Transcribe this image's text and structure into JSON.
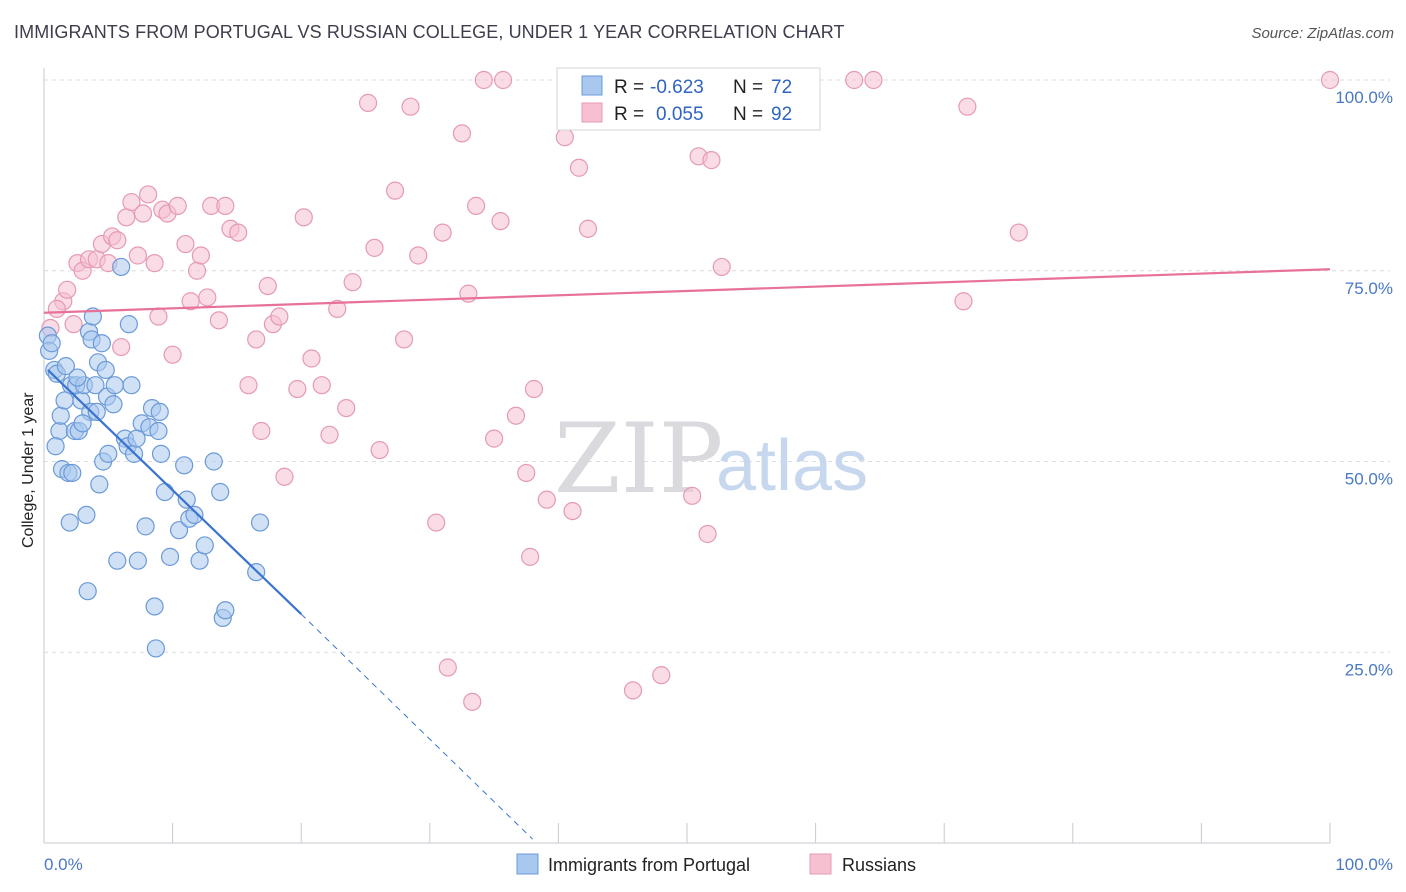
{
  "title": "IMMIGRANTS FROM PORTUGAL VS RUSSIAN COLLEGE, UNDER 1 YEAR CORRELATION CHART",
  "source": "Source: ZipAtlas.com",
  "watermark": {
    "zip": "ZIP",
    "atlas": "atlas"
  },
  "colors": {
    "blue_fill": "#a9c8ef",
    "blue_stroke": "#6b9ad8",
    "blue_line": "#3a74d0",
    "pink_fill": "#f6c0d1",
    "pink_stroke": "#e59ab4",
    "pink_line": "#e8719a",
    "grid": "#dcdce4",
    "axis_text": "#4a78c4"
  },
  "legend": {
    "rows": [
      {
        "r_label": "R =",
        "r_value": "-0.623",
        "n_label": "N =",
        "n_value": "72"
      },
      {
        "r_label": "R =",
        "r_value": "0.055",
        "n_label": "N =",
        "n_value": "92"
      }
    ]
  },
  "bottom_legend": [
    "Immigrants from Portugal",
    "Russians"
  ],
  "chart_data": {
    "type": "scatter",
    "title": "IMMIGRANTS FROM PORTUGAL VS RUSSIAN COLLEGE, UNDER 1 YEAR CORRELATION CHART",
    "xlabel": "",
    "ylabel": "College, Under 1 year",
    "xlim": [
      0,
      100
    ],
    "ylim": [
      0,
      100
    ],
    "x_tick_labels": [
      "0.0%",
      "100.0%"
    ],
    "y_tick_labels": [
      "100.0%",
      "75.0%",
      "50.0%",
      "25.0%"
    ],
    "y_ticks": [
      100,
      75,
      50,
      25
    ],
    "grid": true,
    "series": [
      {
        "name": "Immigrants from Portugal",
        "trend": {
          "x0": 0.3,
          "y0": 62.0,
          "x1": 20.0,
          "y1": 30.0,
          "dash_x1": 38.0,
          "dash_y1": 0.5
        },
        "points": [
          [
            0.3,
            66.5
          ],
          [
            0.4,
            64.5
          ],
          [
            0.6,
            65.5
          ],
          [
            0.8,
            62
          ],
          [
            1.0,
            61.5
          ],
          [
            1.2,
            54
          ],
          [
            1.3,
            56
          ],
          [
            1.4,
            49
          ],
          [
            1.7,
            62.5
          ],
          [
            1.9,
            48.5
          ],
          [
            2.0,
            42
          ],
          [
            2.1,
            60
          ],
          [
            2.2,
            48.5
          ],
          [
            2.4,
            54
          ],
          [
            2.5,
            60
          ],
          [
            2.7,
            54
          ],
          [
            2.9,
            58
          ],
          [
            3.1,
            60
          ],
          [
            3.3,
            43
          ],
          [
            3.4,
            33
          ],
          [
            3.5,
            67
          ],
          [
            3.6,
            56.5
          ],
          [
            3.7,
            66
          ],
          [
            3.8,
            69
          ],
          [
            4.0,
            60
          ],
          [
            4.1,
            56.5
          ],
          [
            4.2,
            63
          ],
          [
            4.5,
            65.5
          ],
          [
            4.6,
            50
          ],
          [
            4.8,
            62
          ],
          [
            4.9,
            58.5
          ],
          [
            5.0,
            51
          ],
          [
            5.4,
            57.5
          ],
          [
            5.7,
            37
          ],
          [
            6.0,
            75.5
          ],
          [
            6.3,
            53
          ],
          [
            6.5,
            52
          ],
          [
            6.6,
            68
          ],
          [
            6.8,
            60
          ],
          [
            7.0,
            51
          ],
          [
            7.3,
            37
          ],
          [
            7.6,
            55
          ],
          [
            7.9,
            41.5
          ],
          [
            8.2,
            54.5
          ],
          [
            8.4,
            57
          ],
          [
            8.6,
            31
          ],
          [
            8.7,
            25.5
          ],
          [
            8.9,
            54
          ],
          [
            9.0,
            56.5
          ],
          [
            9.1,
            51
          ],
          [
            9.4,
            46
          ],
          [
            9.8,
            37.5
          ],
          [
            10.5,
            41
          ],
          [
            10.9,
            49.5
          ],
          [
            11.1,
            45
          ],
          [
            11.3,
            42.5
          ],
          [
            11.7,
            43
          ],
          [
            12.1,
            37
          ],
          [
            12.5,
            39
          ],
          [
            13.2,
            50
          ],
          [
            13.7,
            46
          ],
          [
            13.9,
            29.5
          ],
          [
            14.1,
            30.5
          ],
          [
            16.5,
            35.5
          ],
          [
            16.8,
            42
          ],
          [
            5.5,
            60
          ],
          [
            7.2,
            53
          ],
          [
            3.0,
            55
          ],
          [
            2.6,
            61
          ],
          [
            1.6,
            58
          ],
          [
            0.9,
            52
          ],
          [
            4.3,
            47
          ]
        ]
      },
      {
        "name": "Russians",
        "trend": {
          "x0": 0,
          "y0": 69.5,
          "x1": 100,
          "y1": 75.2
        },
        "points": [
          [
            0.5,
            67.5
          ],
          [
            1.5,
            71
          ],
          [
            1.8,
            72.5
          ],
          [
            2.3,
            68
          ],
          [
            2.6,
            76
          ],
          [
            3.0,
            75
          ],
          [
            3.5,
            76.5
          ],
          [
            4.1,
            76.5
          ],
          [
            4.5,
            78.5
          ],
          [
            5.0,
            76
          ],
          [
            5.3,
            79.5
          ],
          [
            5.7,
            79
          ],
          [
            6.4,
            82
          ],
          [
            6.8,
            84
          ],
          [
            7.3,
            77
          ],
          [
            7.7,
            82.5
          ],
          [
            8.1,
            85
          ],
          [
            8.6,
            76
          ],
          [
            9.2,
            83
          ],
          [
            9.6,
            82.5
          ],
          [
            10.0,
            64
          ],
          [
            10.4,
            83.5
          ],
          [
            11.0,
            78.5
          ],
          [
            11.4,
            71
          ],
          [
            11.9,
            75
          ],
          [
            12.2,
            77
          ],
          [
            12.7,
            71.5
          ],
          [
            13.0,
            83.5
          ],
          [
            13.6,
            68.5
          ],
          [
            14.1,
            83.5
          ],
          [
            14.5,
            80.5
          ],
          [
            15.1,
            80
          ],
          [
            15.9,
            60
          ],
          [
            16.5,
            66
          ],
          [
            16.9,
            54
          ],
          [
            17.4,
            73
          ],
          [
            17.8,
            68
          ],
          [
            18.3,
            69
          ],
          [
            18.7,
            48
          ],
          [
            19.7,
            59.5
          ],
          [
            20.2,
            82
          ],
          [
            20.8,
            63.5
          ],
          [
            21.6,
            60
          ],
          [
            22.2,
            53.5
          ],
          [
            22.8,
            70
          ],
          [
            23.5,
            57
          ],
          [
            24.0,
            73.5
          ],
          [
            25.2,
            97
          ],
          [
            25.7,
            78
          ],
          [
            26.1,
            51.5
          ],
          [
            27.3,
            85.5
          ],
          [
            28.0,
            66
          ],
          [
            28.5,
            96.5
          ],
          [
            29.1,
            77
          ],
          [
            30.5,
            42
          ],
          [
            31.0,
            80
          ],
          [
            32.5,
            93
          ],
          [
            33.0,
            72
          ],
          [
            33.6,
            83.5
          ],
          [
            34.2,
            100
          ],
          [
            35.0,
            53
          ],
          [
            35.7,
            100
          ],
          [
            35.5,
            81.5
          ],
          [
            36.7,
            56
          ],
          [
            37.5,
            48.5
          ],
          [
            38.1,
            59.5
          ],
          [
            37.8,
            37.5
          ],
          [
            39.1,
            45
          ],
          [
            40.5,
            92.5
          ],
          [
            41.1,
            43.5
          ],
          [
            41.6,
            88.5
          ],
          [
            42.3,
            80.5
          ],
          [
            45.2,
            100
          ],
          [
            45.8,
            20
          ],
          [
            48.0,
            22
          ],
          [
            50.4,
            45.5
          ],
          [
            50.9,
            90
          ],
          [
            51.6,
            40.5
          ],
          [
            51.9,
            89.5
          ],
          [
            52.7,
            75.5
          ],
          [
            59.1,
            100
          ],
          [
            63.0,
            100
          ],
          [
            64.5,
            100
          ],
          [
            71.5,
            71
          ],
          [
            71.8,
            96.5
          ],
          [
            75.8,
            80
          ],
          [
            100,
            100
          ],
          [
            31.4,
            23
          ],
          [
            33.3,
            18.5
          ],
          [
            1.0,
            70
          ],
          [
            8.9,
            69
          ],
          [
            6.0,
            65
          ]
        ]
      }
    ]
  }
}
